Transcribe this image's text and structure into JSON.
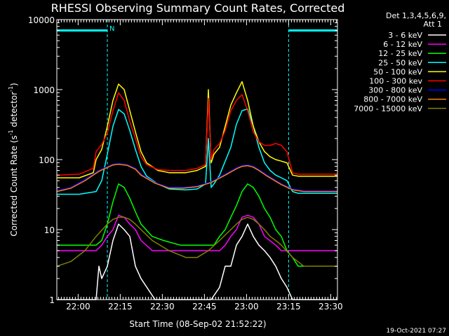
{
  "chart_data": {
    "type": "line",
    "title": "RHESSI Observing Summary Count Rates, Corrected",
    "xlabel": "Start Time (08-Sep-02 21:52:22)",
    "ylabel": "Corrected Count Rate (s^-1 detector^-1)",
    "ylabel_main": "Corrected Count Rate (s",
    "ylabel_sup1": "-1",
    "ylabel_mid": " detector",
    "ylabel_sup2": "-1",
    "ylabel_end": ")",
    "x_unit": "minutes since 21:52:22",
    "xlim": [
      0,
      100
    ],
    "ylim": [
      1,
      10000
    ],
    "yscale": "log",
    "x_ticks": [
      {
        "label": "22:00",
        "value": 7.6
      },
      {
        "label": "22:15",
        "value": 22.6
      },
      {
        "label": "22:30",
        "value": 37.6
      },
      {
        "label": "22:45",
        "value": 52.6
      },
      {
        "label": "23:00",
        "value": 67.6
      },
      {
        "label": "23:15",
        "value": 82.6
      },
      {
        "label": "23:30",
        "value": 97.6
      }
    ],
    "y_ticks": [
      {
        "label": "1",
        "value": 1
      },
      {
        "label": "10",
        "value": 10
      },
      {
        "label": "100",
        "value": 100
      },
      {
        "label": "1000",
        "value": 1000
      },
      {
        "label": "10000",
        "value": 10000
      }
    ],
    "legend_header": [
      "Det 1,3,4,5,6,9,",
      "Att 1"
    ],
    "legend_position": "right",
    "night_label": "N",
    "night_level": 7000,
    "night_intervals": [
      [
        0,
        18
      ],
      [
        82.6,
        100
      ]
    ],
    "series": [
      {
        "name": "3 - 6 keV",
        "color": "#ffffff",
        "x": [
          0,
          5,
          10,
          14,
          15,
          16,
          18,
          20,
          22,
          24,
          26,
          28,
          30,
          35,
          40,
          45,
          50,
          55,
          58,
          60,
          62,
          64,
          66,
          68,
          70,
          72,
          74,
          76,
          78,
          80,
          82,
          84,
          86,
          90,
          100
        ],
        "y": [
          1,
          1,
          1,
          1,
          3,
          2,
          3,
          7,
          12,
          10,
          8,
          3,
          2,
          1,
          1,
          1,
          1,
          1,
          1.5,
          3,
          3,
          6,
          8,
          12,
          8,
          6,
          5,
          4,
          3,
          2,
          1.5,
          1,
          1,
          1,
          1
        ]
      },
      {
        "name": "6 - 12 keV",
        "color": "#ff00ff",
        "x": [
          0,
          14,
          16,
          18,
          20,
          22,
          24,
          26,
          28,
          30,
          34,
          40,
          50,
          58,
          60,
          62,
          64,
          66,
          68,
          70,
          72,
          74,
          78,
          80,
          84,
          90,
          100
        ],
        "y": [
          5,
          5,
          6,
          8,
          10,
          16,
          15,
          12,
          10,
          7,
          5,
          5,
          5,
          5,
          6,
          8,
          10,
          15,
          16,
          15,
          12,
          8,
          6,
          5,
          5,
          5,
          5
        ]
      },
      {
        "name": "12 - 25 keV",
        "color": "#00ff00",
        "x": [
          0,
          10,
          14,
          16,
          18,
          20,
          22,
          24,
          26,
          28,
          30,
          34,
          38,
          44,
          50,
          56,
          58,
          60,
          62,
          64,
          66,
          68,
          70,
          72,
          74,
          76,
          78,
          80,
          82,
          84,
          86,
          90,
          100
        ],
        "y": [
          6,
          6,
          6,
          7,
          12,
          25,
          45,
          40,
          28,
          18,
          12,
          8,
          7,
          6,
          6,
          6,
          8,
          10,
          15,
          22,
          35,
          45,
          40,
          30,
          20,
          15,
          10,
          8,
          5,
          4,
          3,
          3,
          3
        ]
      },
      {
        "name": "25 - 50 keV",
        "color": "#00ffff",
        "x": [
          0,
          8,
          14,
          16,
          18,
          20,
          22,
          24,
          26,
          28,
          30,
          32,
          36,
          40,
          46,
          50,
          53,
          54,
          55,
          56,
          58,
          62,
          64,
          66,
          68,
          70,
          72,
          74,
          76,
          78,
          80,
          82,
          84,
          86,
          90,
          100
        ],
        "y": [
          32,
          32,
          35,
          50,
          120,
          300,
          520,
          450,
          260,
          140,
          80,
          58,
          45,
          38,
          37,
          38,
          45,
          200,
          40,
          45,
          60,
          150,
          320,
          500,
          530,
          300,
          150,
          90,
          70,
          60,
          55,
          50,
          35,
          33,
          33,
          33
        ]
      },
      {
        "name": "50 - 100 keV",
        "color": "#ffff00",
        "x": [
          0,
          8,
          13,
          14,
          16,
          18,
          20,
          22,
          24,
          26,
          28,
          30,
          32,
          36,
          40,
          46,
          50,
          53,
          54,
          55,
          56,
          58,
          60,
          62,
          64,
          66,
          68,
          70,
          72,
          74,
          76,
          78,
          80,
          82,
          84,
          86,
          90,
          100
        ],
        "y": [
          55,
          55,
          65,
          100,
          140,
          300,
          700,
          1200,
          1000,
          500,
          250,
          130,
          90,
          70,
          65,
          65,
          70,
          80,
          1000,
          90,
          120,
          150,
          300,
          600,
          900,
          1300,
          700,
          300,
          180,
          130,
          110,
          100,
          95,
          90,
          60,
          58,
          58,
          58
        ]
      },
      {
        "name": "100 - 300 kev",
        "color": "#ff0000",
        "x": [
          0,
          8,
          13,
          14,
          16,
          18,
          20,
          22,
          24,
          26,
          28,
          30,
          32,
          36,
          40,
          46,
          50,
          53,
          54,
          55,
          56,
          58,
          60,
          62,
          64,
          66,
          68,
          70,
          72,
          74,
          76,
          78,
          80,
          82,
          84,
          86,
          90,
          100
        ],
        "y": [
          60,
          62,
          75,
          130,
          165,
          240,
          500,
          900,
          700,
          350,
          200,
          110,
          85,
          72,
          70,
          70,
          75,
          85,
          750,
          100,
          140,
          170,
          260,
          500,
          700,
          850,
          500,
          250,
          180,
          160,
          160,
          170,
          160,
          130,
          65,
          62,
          62,
          62
        ]
      },
      {
        "name": "300 - 800 keV",
        "color": "#0000ff",
        "x": [
          0,
          5,
          10,
          15,
          20,
          22,
          25,
          28,
          30,
          35,
          40,
          45,
          50,
          55,
          60,
          64,
          66,
          68,
          70,
          72,
          75,
          80,
          84,
          88,
          92,
          100
        ],
        "y": [
          36,
          40,
          52,
          70,
          86,
          88,
          85,
          75,
          62,
          47,
          40,
          40,
          42,
          48,
          62,
          76,
          82,
          84,
          80,
          72,
          60,
          45,
          38,
          36,
          36,
          36
        ]
      },
      {
        "name": "800 - 7000 keV",
        "color": "#ff8000",
        "x": [
          0,
          5,
          10,
          15,
          20,
          22,
          25,
          28,
          30,
          35,
          40,
          45,
          50,
          55,
          60,
          64,
          66,
          68,
          70,
          72,
          75,
          80,
          84,
          88,
          92,
          100
        ],
        "y": [
          35,
          39,
          50,
          68,
          84,
          86,
          83,
          73,
          60,
          46,
          39,
          39,
          41,
          47,
          60,
          74,
          80,
          82,
          78,
          70,
          58,
          44,
          37,
          35,
          35,
          35
        ]
      },
      {
        "name": "7000 - 15000 keV",
        "color": "#808000",
        "x": [
          0,
          5,
          10,
          14,
          18,
          20,
          22,
          24,
          26,
          28,
          30,
          34,
          40,
          46,
          50,
          54,
          58,
          62,
          64,
          66,
          68,
          70,
          72,
          74,
          76,
          78,
          80,
          84,
          88,
          92,
          100
        ],
        "y": [
          3,
          3.5,
          5,
          8,
          12,
          14,
          15,
          15,
          14,
          12,
          10,
          7,
          5,
          4,
          4,
          5,
          7,
          10,
          12,
          14,
          15,
          14,
          12,
          10,
          8,
          7,
          6,
          4,
          3,
          3,
          3
        ]
      }
    ]
  },
  "footer": {
    "timestamp": "19-Oct-2021 07:27"
  }
}
